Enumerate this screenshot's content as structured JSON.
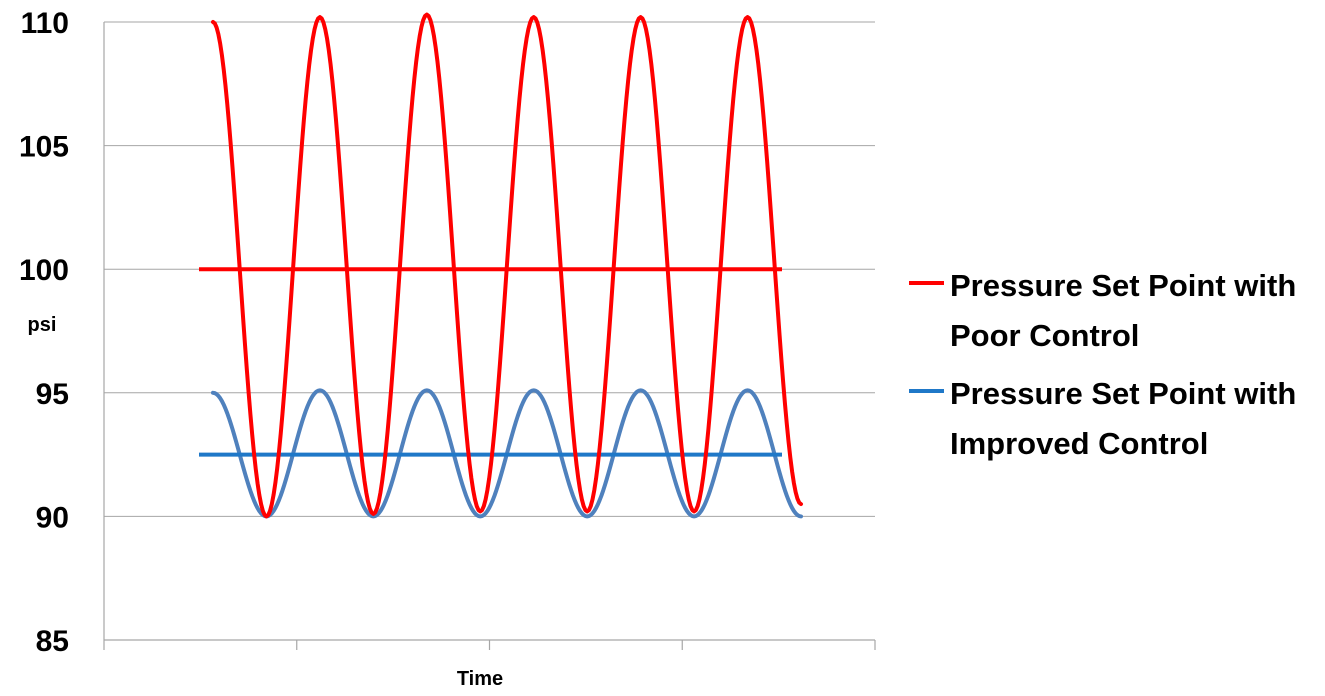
{
  "chart_data": {
    "type": "line",
    "title": "",
    "xlabel": "Time",
    "ylabel": "psi",
    "ylim": [
      85,
      110
    ],
    "yticks": [
      85,
      90,
      95,
      100,
      105,
      110
    ],
    "grid": true,
    "legend_position": "right",
    "series": [
      {
        "name": "Pressure Set Point with Poor Control",
        "color": "#ff0000",
        "oscillation": {
          "x": [
            0,
            0.5,
            1,
            1.5,
            2,
            2.5,
            3,
            3.5,
            4,
            4.5,
            5,
            5.5
          ],
          "y": [
            110,
            90,
            110.2,
            90.1,
            110.3,
            90.2,
            110.2,
            90.2,
            110.2,
            90.2,
            110.2,
            90.5
          ]
        },
        "set_point": 100
      },
      {
        "name": "Pressure Set Point with Improved Control",
        "color": "#4f81bd",
        "set_point_color": "#1f78c8",
        "oscillation": {
          "x": [
            0,
            0.5,
            1,
            1.5,
            2,
            2.5,
            3,
            3.5,
            4,
            4.5,
            5,
            5.5
          ],
          "y": [
            95,
            90,
            95.1,
            90,
            95.1,
            90,
            95.1,
            90,
            95.1,
            90,
            95.1,
            90
          ]
        },
        "set_point": 92.5
      }
    ]
  }
}
